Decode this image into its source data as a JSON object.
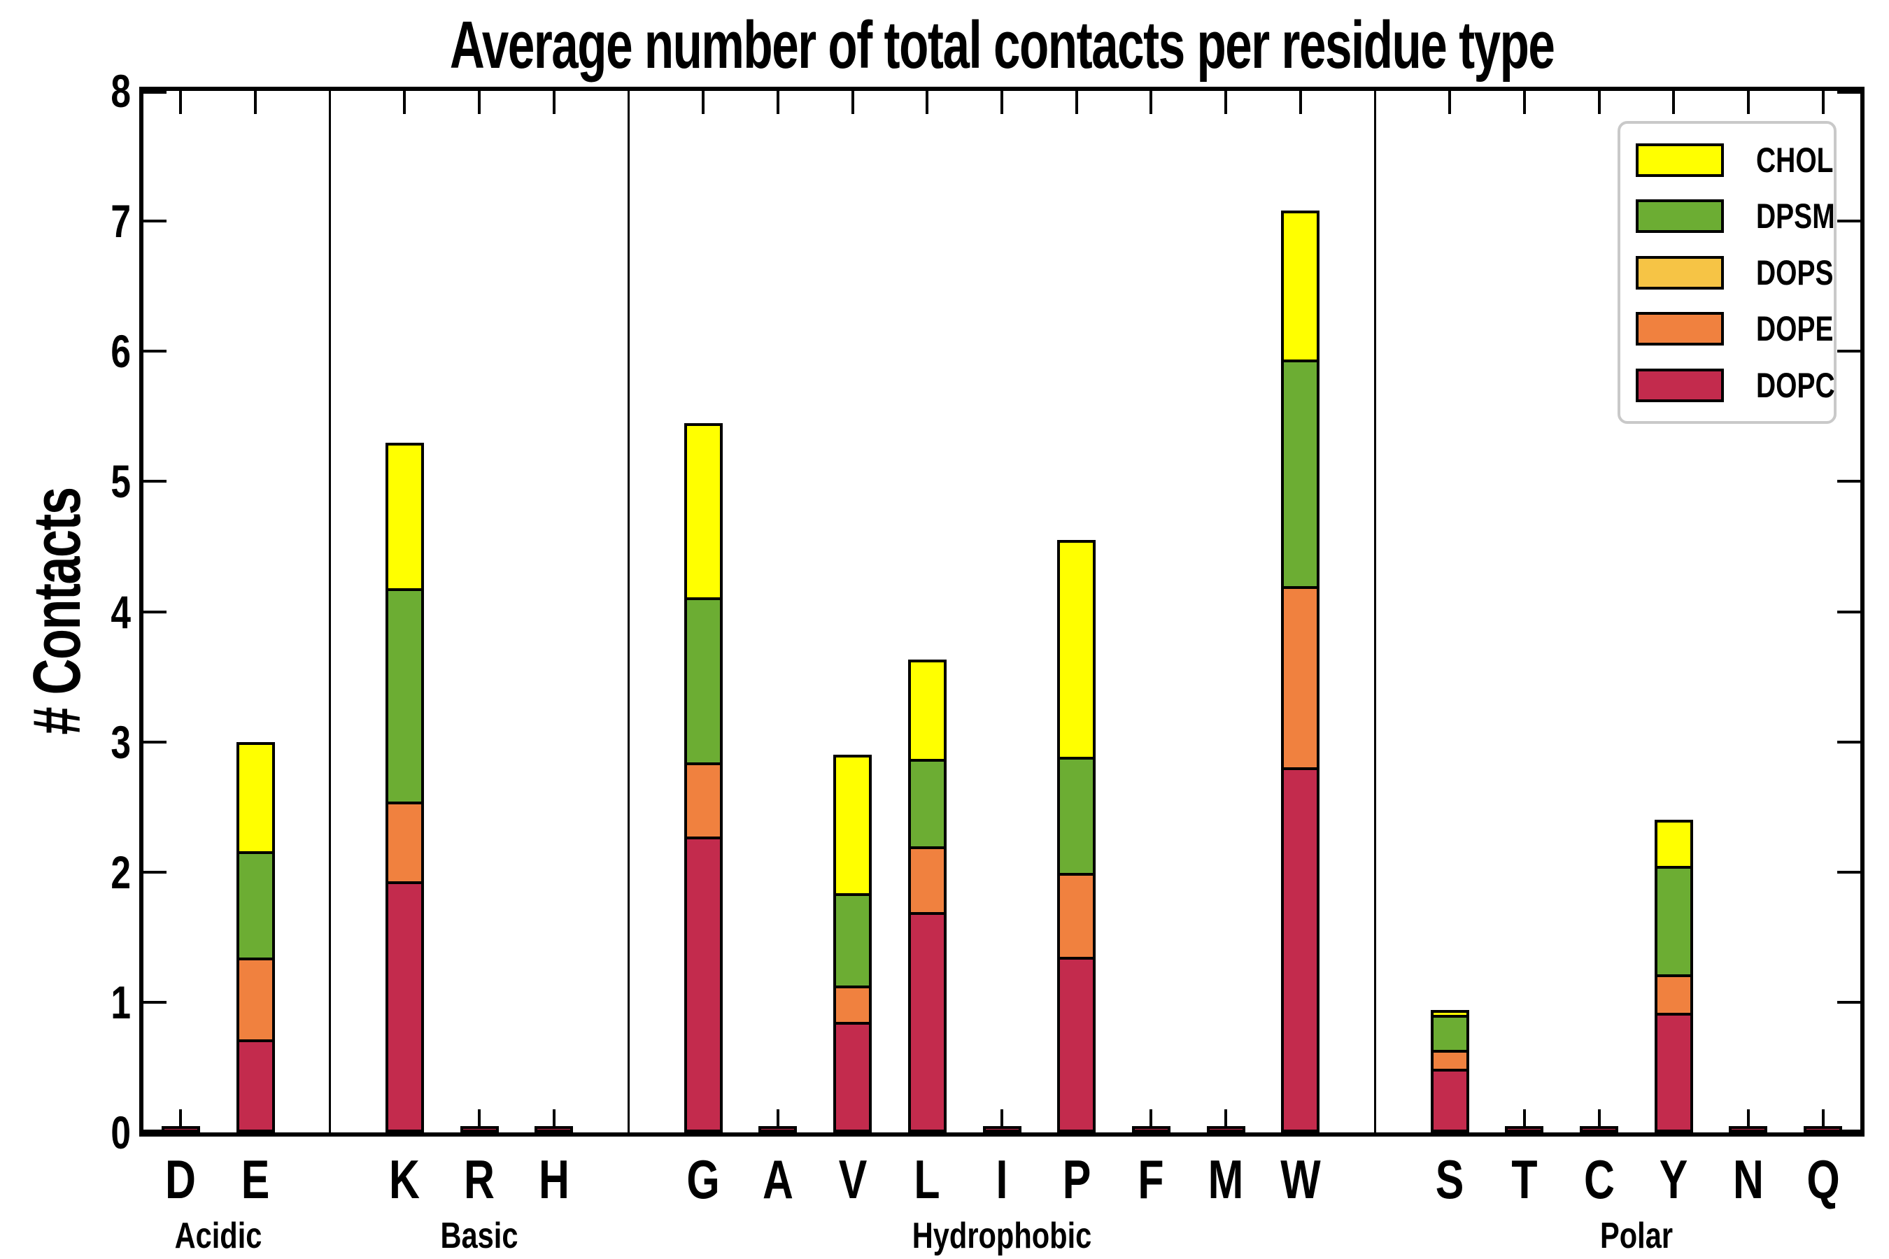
{
  "title": "Average number of total contacts per residue type",
  "ylabel": "# Contacts",
  "legend": {
    "items": [
      {
        "label": "CHOL",
        "color": "#FFFF00"
      },
      {
        "label": "DPSM",
        "color": "#6CAD33"
      },
      {
        "label": "DOPS",
        "color": "#F6C445"
      },
      {
        "label": "DOPE",
        "color": "#F0813F"
      },
      {
        "label": "DOPC",
        "color": "#C32B4D"
      }
    ],
    "border_color": "#C9C9C9"
  },
  "chart_data": {
    "type": "bar",
    "stacked": true,
    "title": "Average number of total contacts per residue type",
    "xlabel": "",
    "ylabel": "# Contacts",
    "ylim": [
      0,
      8
    ],
    "yticks": [
      0,
      1,
      2,
      3,
      4,
      5,
      6,
      7,
      8
    ],
    "grid": false,
    "legend_position": "upper right",
    "categories": [
      "D",
      "E",
      "K",
      "R",
      "H",
      "G",
      "A",
      "V",
      "L",
      "I",
      "P",
      "F",
      "M",
      "W",
      "S",
      "T",
      "C",
      "Y",
      "N",
      "Q"
    ],
    "groups": [
      {
        "label": "Acidic",
        "residues": [
          "D",
          "E"
        ]
      },
      {
        "label": "Basic",
        "residues": [
          "K",
          "R",
          "H"
        ]
      },
      {
        "label": "Hydrophobic",
        "residues": [
          "G",
          "A",
          "V",
          "L",
          "I",
          "P",
          "F",
          "M",
          "W"
        ]
      },
      {
        "label": "Polar",
        "residues": [
          "S",
          "T",
          "C",
          "Y",
          "N",
          "Q"
        ]
      }
    ],
    "series": [
      {
        "name": "DOPC",
        "color": "#C32B4D",
        "values": [
          0.02,
          0.68,
          1.9,
          0.02,
          0.02,
          2.25,
          0.02,
          0.82,
          1.67,
          0.02,
          1.32,
          0.02,
          0.02,
          2.78,
          0.47,
          0.02,
          0.02,
          0.89,
          0.02,
          0.02
        ]
      },
      {
        "name": "DOPE",
        "color": "#F0813F",
        "values": [
          0,
          0.64,
          0.62,
          0,
          0,
          0.57,
          0,
          0.28,
          0.51,
          0,
          0.65,
          0,
          0,
          1.4,
          0.15,
          0,
          0,
          0.3,
          0,
          0
        ]
      },
      {
        "name": "DOPS",
        "color": "#F6C445",
        "values": [
          0,
          0,
          0,
          0,
          0,
          0,
          0,
          0,
          0,
          0,
          0,
          0,
          0,
          0,
          0,
          0,
          0,
          0,
          0,
          0
        ]
      },
      {
        "name": "DPSM",
        "color": "#6CAD33",
        "values": [
          0,
          0.83,
          1.65,
          0,
          0,
          1.28,
          0,
          0.72,
          0.68,
          0,
          0.9,
          0,
          0,
          1.75,
          0.28,
          0,
          0,
          0.85,
          0,
          0
        ]
      },
      {
        "name": "CHOL",
        "color": "#FFFF00",
        "values": [
          0,
          0.85,
          1.13,
          0,
          0,
          1.35,
          0,
          1.08,
          0.77,
          0,
          1.68,
          0,
          0,
          1.15,
          0.04,
          0,
          0,
          0.36,
          0,
          0
        ]
      }
    ],
    "totals": {
      "D": 0.02,
      "E": 3.0,
      "K": 5.3,
      "R": 0.02,
      "H": 0.02,
      "G": 5.45,
      "A": 0.02,
      "V": 2.9,
      "L": 3.63,
      "I": 0.02,
      "P": 4.55,
      "F": 0.02,
      "M": 0.02,
      "W": 7.08,
      "S": 0.94,
      "T": 0.02,
      "C": 0.02,
      "Y": 2.4,
      "N": 0.02,
      "Q": 0.02
    }
  }
}
